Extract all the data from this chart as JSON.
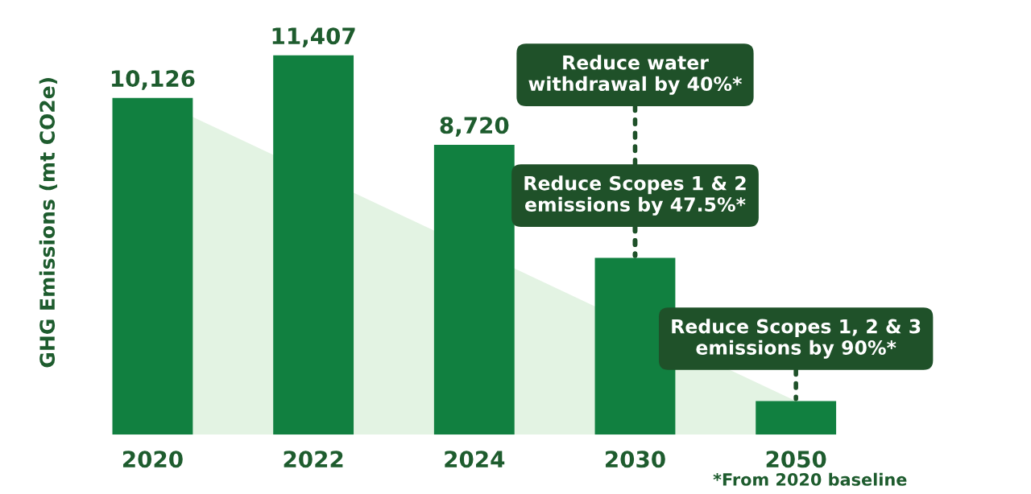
{
  "chart_data": {
    "type": "bar",
    "ylabel": "GHG Emissions (mt CO2e)",
    "categories": [
      "2020",
      "2022",
      "2024",
      "2030",
      "2050"
    ],
    "series": [
      {
        "type": "area",
        "color": "#e3f3e3",
        "values": [
          10126,
          null,
          null,
          null,
          1013
        ]
      },
      {
        "color": "#118040",
        "values": [
          10126,
          11407,
          8720,
          5316,
          1013
        ],
        "value_labels": [
          "10,126",
          "11,407",
          "8,720",
          null,
          null
        ]
      }
    ],
    "grid": false,
    "legend": false,
    "annotations": [
      {
        "text": "Reduce Scopes 1 & 2\nemissions by 47.5%*",
        "x": "2030",
        "y": 5316
      },
      {
        "text": "Reduce water\nwithdrawal by 40%*",
        "x": "2030",
        "y": 5316
      },
      {
        "text": "Reduce Scopes 1, 2 & 3\nemissions by 90%*",
        "x": "2050",
        "y": 1013
      },
      "*From 2020 baseline"
    ]
  }
}
